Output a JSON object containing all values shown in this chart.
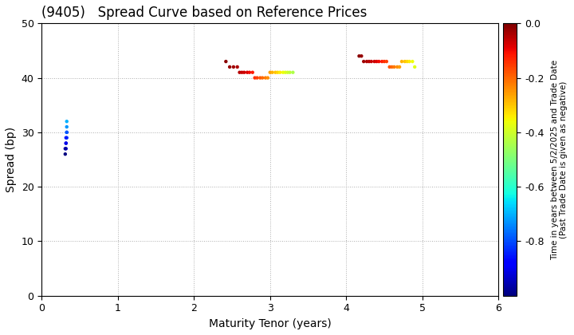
{
  "title": "(9405)   Spread Curve based on Reference Prices",
  "xlabel": "Maturity Tenor (years)",
  "ylabel": "Spread (bp)",
  "xlim": [
    0,
    6
  ],
  "ylim": [
    0,
    50
  ],
  "xticks": [
    0,
    1,
    2,
    3,
    4,
    5,
    6
  ],
  "yticks": [
    0,
    10,
    20,
    30,
    40,
    50
  ],
  "colorbar_label_line1": "Time in years between 5/2/2025 and Trade Date",
  "colorbar_label_line2": "(Past Trade Date is given as negative)",
  "colorbar_vmin": -1.0,
  "colorbar_vmax": 0.0,
  "colorbar_ticks": [
    0.0,
    -0.2,
    -0.4,
    -0.6,
    -0.8
  ],
  "cmap": "jet",
  "clusters": [
    {
      "tenors": [
        0.33,
        0.33,
        0.33,
        0.33,
        0.33,
        0.32,
        0.32,
        0.32,
        0.32,
        0.31,
        0.31
      ],
      "spreads": [
        32,
        31,
        30,
        30,
        29,
        29,
        28,
        28,
        27,
        27,
        26
      ],
      "times": [
        -0.7,
        -0.73,
        -0.76,
        -0.79,
        -0.82,
        -0.85,
        -0.88,
        -0.91,
        -0.94,
        -0.97,
        -1.0
      ]
    },
    {
      "tenors": [
        2.42,
        2.47,
        2.52,
        2.57,
        2.6,
        2.63,
        2.66,
        2.7,
        2.73,
        2.77,
        2.8,
        2.83,
        2.87,
        2.9,
        2.94,
        2.97,
        3.0,
        3.03,
        3.07,
        3.1,
        3.13,
        3.17,
        3.2,
        3.23,
        3.26,
        3.3
      ],
      "spreads": [
        43,
        42,
        42,
        42,
        41,
        41,
        41,
        41,
        41,
        41,
        40,
        40,
        40,
        40,
        40,
        40,
        41,
        41,
        41,
        41,
        41,
        41,
        41,
        41,
        41,
        41
      ],
      "times": [
        -0.01,
        -0.02,
        -0.03,
        -0.04,
        -0.05,
        -0.06,
        -0.07,
        -0.08,
        -0.1,
        -0.12,
        -0.14,
        -0.16,
        -0.18,
        -0.2,
        -0.22,
        -0.24,
        -0.26,
        -0.28,
        -0.3,
        -0.32,
        -0.34,
        -0.36,
        -0.38,
        -0.4,
        -0.42,
        -0.44
      ]
    },
    {
      "tenors": [
        4.17,
        4.2,
        4.23,
        4.27,
        4.3,
        4.33,
        4.37,
        4.4,
        4.43,
        4.47,
        4.5,
        4.53,
        4.57,
        4.6,
        4.63,
        4.67,
        4.7,
        4.73,
        4.77,
        4.8,
        4.83,
        4.87,
        4.9
      ],
      "spreads": [
        44,
        44,
        43,
        43,
        43,
        43,
        43,
        43,
        43,
        43,
        43,
        43,
        42,
        42,
        42,
        42,
        42,
        43,
        43,
        43,
        43,
        43,
        42
      ],
      "times": [
        -0.01,
        -0.02,
        -0.03,
        -0.04,
        -0.05,
        -0.06,
        -0.07,
        -0.08,
        -0.1,
        -0.12,
        -0.14,
        -0.16,
        -0.18,
        -0.2,
        -0.22,
        -0.24,
        -0.26,
        -0.28,
        -0.3,
        -0.32,
        -0.34,
        -0.36,
        -0.38
      ]
    }
  ],
  "background_color": "#ffffff",
  "grid_color": "#999999",
  "title_fontsize": 12,
  "axis_fontsize": 10,
  "tick_fontsize": 9,
  "dot_size": 10
}
